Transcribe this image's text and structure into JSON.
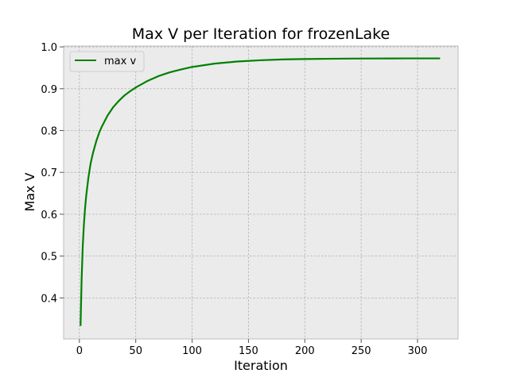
{
  "chart_data": {
    "type": "line",
    "title": "Max V per Iteration for frozenLake",
    "xlabel": "Iteration",
    "ylabel": "Max V",
    "xlim": [
      -14,
      336
    ],
    "ylim": [
      0.302,
      1.002
    ],
    "xticks": [
      0,
      50,
      100,
      150,
      200,
      250,
      300
    ],
    "yticks": [
      0.4,
      0.5,
      0.6,
      0.7,
      0.8,
      0.9,
      1.0
    ],
    "xtick_labels": [
      "0",
      "50",
      "100",
      "150",
      "200",
      "250",
      "300"
    ],
    "ytick_labels": [
      "0.4",
      "0.5",
      "0.6",
      "0.7",
      "0.8",
      "0.9",
      "1.0"
    ],
    "grid": true,
    "legend_position": "top-left",
    "background_color": "#ebebeb",
    "series": [
      {
        "name": "max v",
        "color": "#008000",
        "x": [
          1,
          2,
          3,
          4,
          5,
          6,
          8,
          10,
          12,
          15,
          18,
          20,
          25,
          30,
          35,
          40,
          45,
          50,
          60,
          70,
          80,
          90,
          100,
          120,
          140,
          160,
          180,
          200,
          220,
          240,
          260,
          280,
          300,
          320
        ],
        "y": [
          0.333,
          0.447,
          0.525,
          0.576,
          0.614,
          0.643,
          0.688,
          0.722,
          0.746,
          0.775,
          0.798,
          0.81,
          0.836,
          0.856,
          0.871,
          0.884,
          0.894,
          0.903,
          0.918,
          0.93,
          0.939,
          0.946,
          0.952,
          0.96,
          0.965,
          0.968,
          0.97,
          0.971,
          0.9715,
          0.972,
          0.9722,
          0.9724,
          0.9725,
          0.9725
        ]
      }
    ]
  }
}
